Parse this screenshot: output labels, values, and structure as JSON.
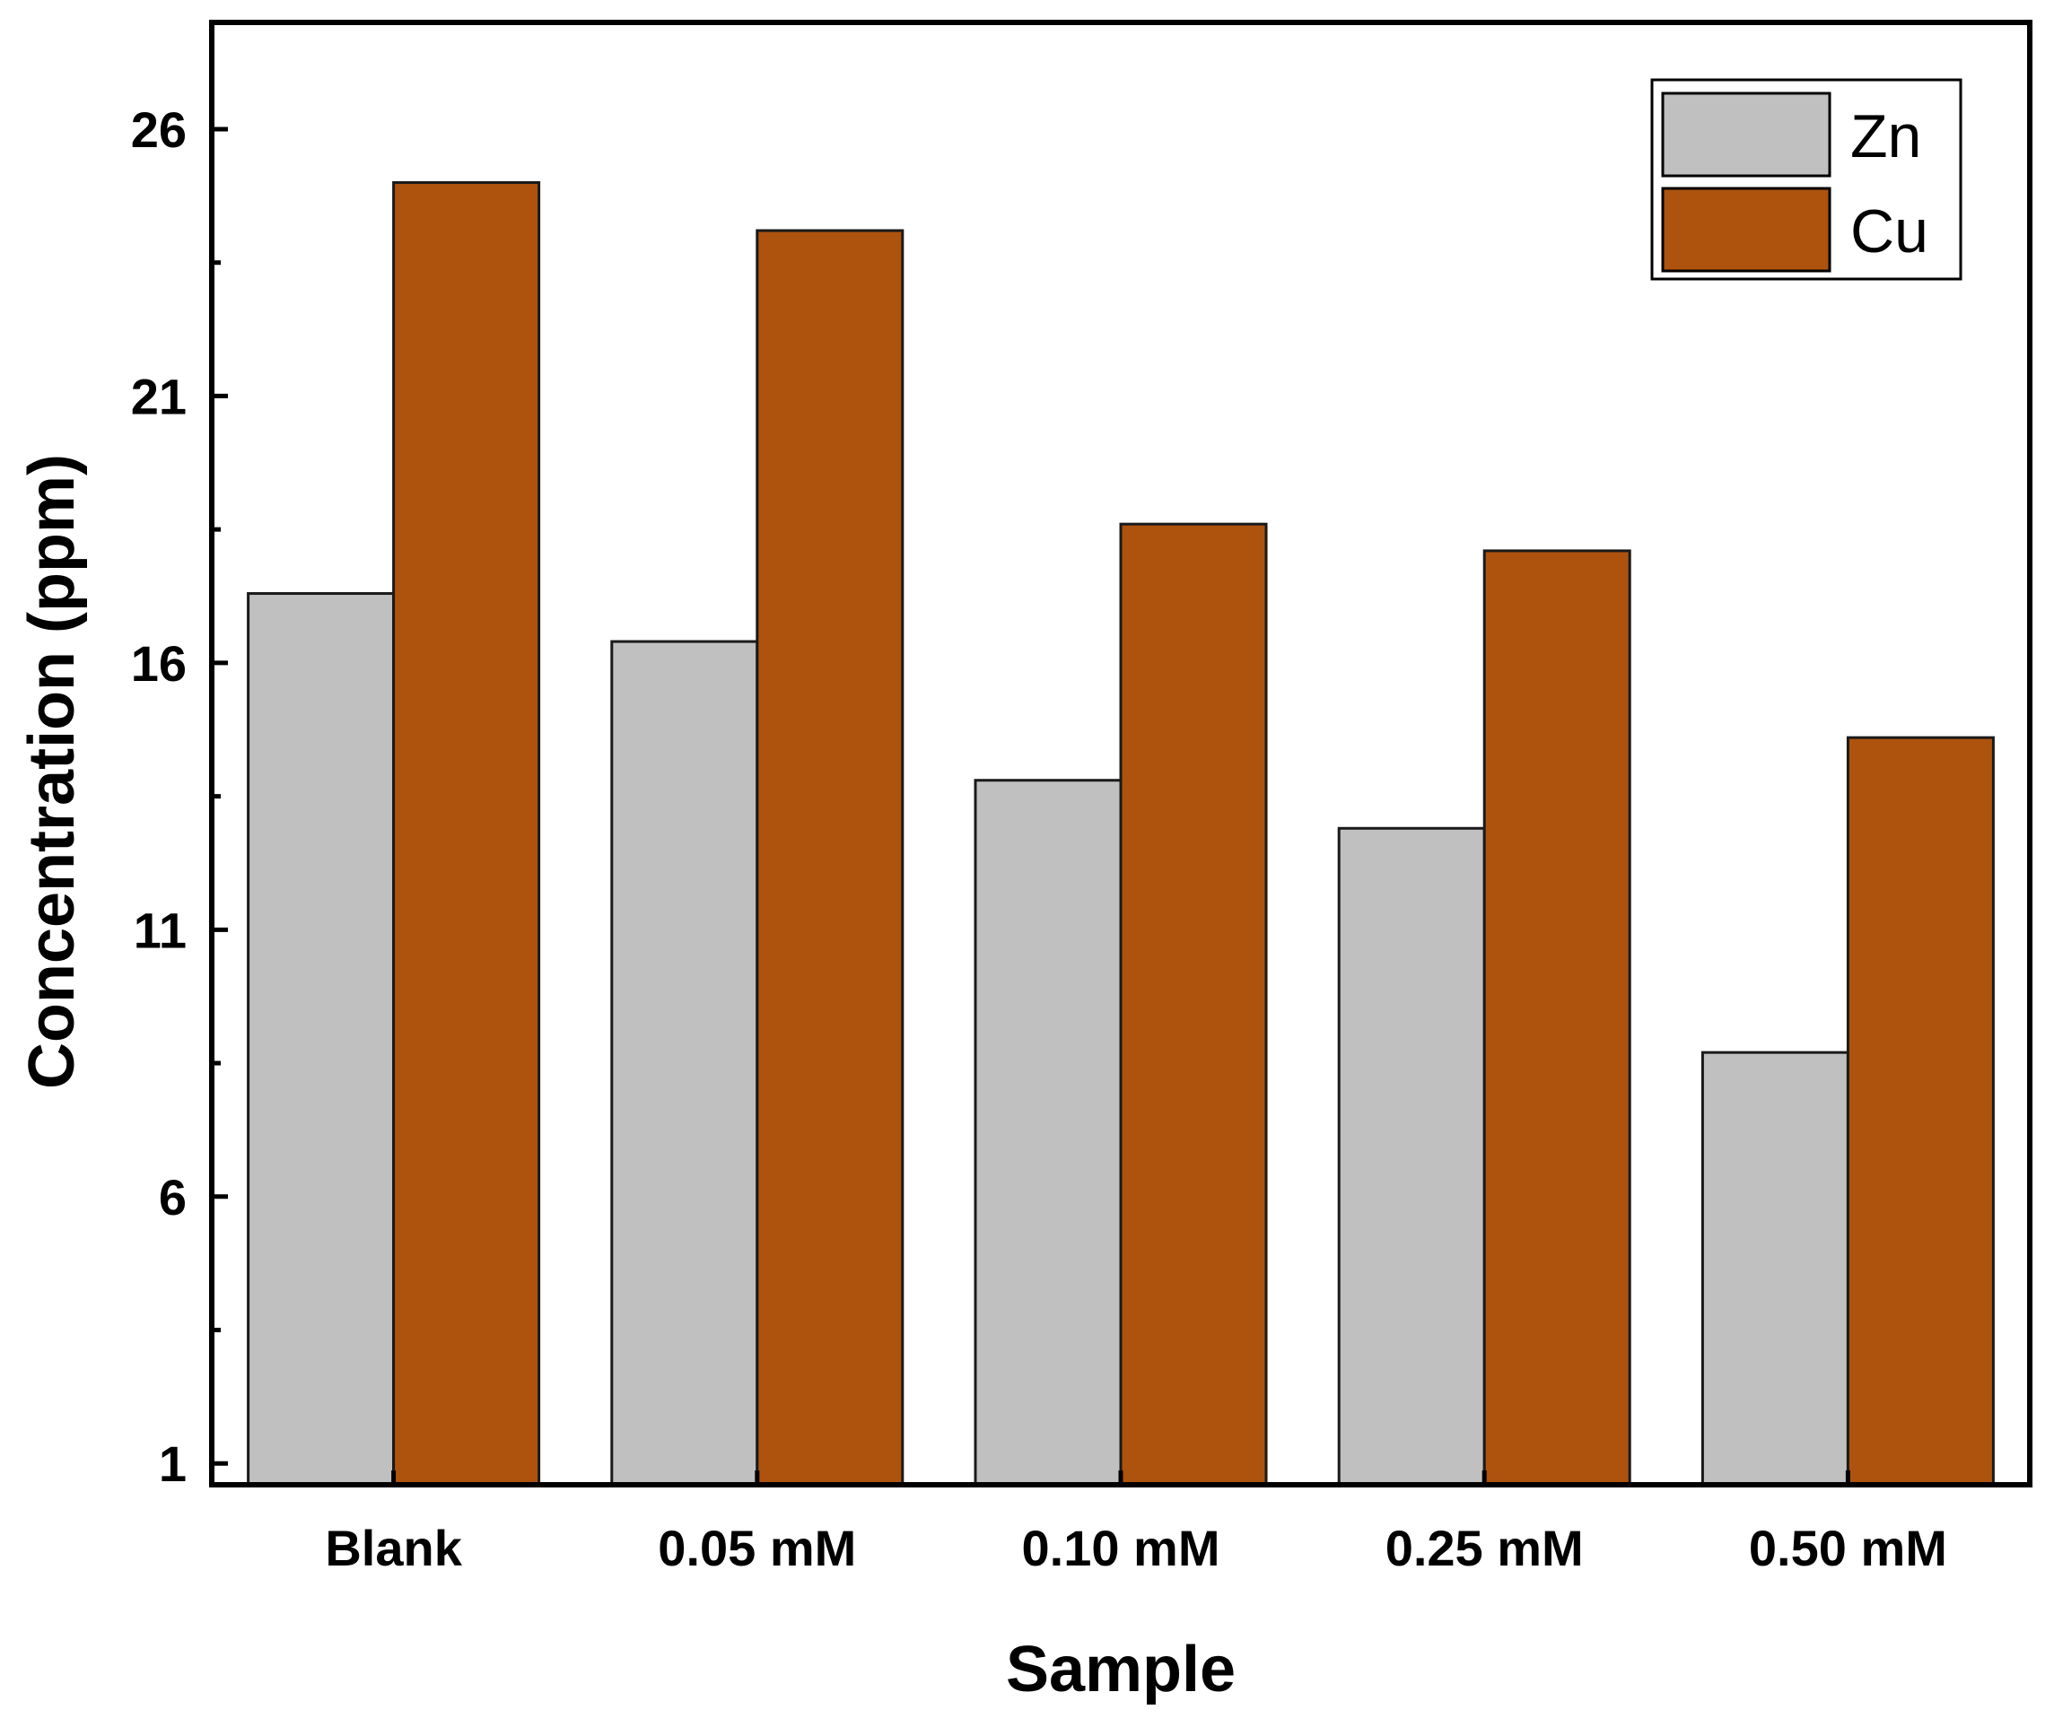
{
  "chart_data": {
    "type": "bar",
    "title": "",
    "xlabel": "Sample",
    "ylabel": "Concentration (ppm)",
    "categories": [
      "Blank",
      "0.05 mM",
      "0.10 mM",
      "0.25 mM",
      "0.50 mM"
    ],
    "series": [
      {
        "name": "Zn",
        "color": "#c0c0c0",
        "values": [
          17.3,
          16.4,
          13.8,
          12.9,
          8.7
        ]
      },
      {
        "name": "Cu",
        "color": "#ad530e",
        "values": [
          25.0,
          24.1,
          18.6,
          18.1,
          14.6
        ]
      }
    ],
    "ylim": [
      0.6,
      28.0
    ],
    "yticks": [
      1,
      6,
      11,
      16,
      21,
      26
    ],
    "ytick_labels": [
      "1",
      "6",
      "11",
      "16",
      "21",
      "26"
    ],
    "grid": false,
    "legend_position": "top-right"
  }
}
